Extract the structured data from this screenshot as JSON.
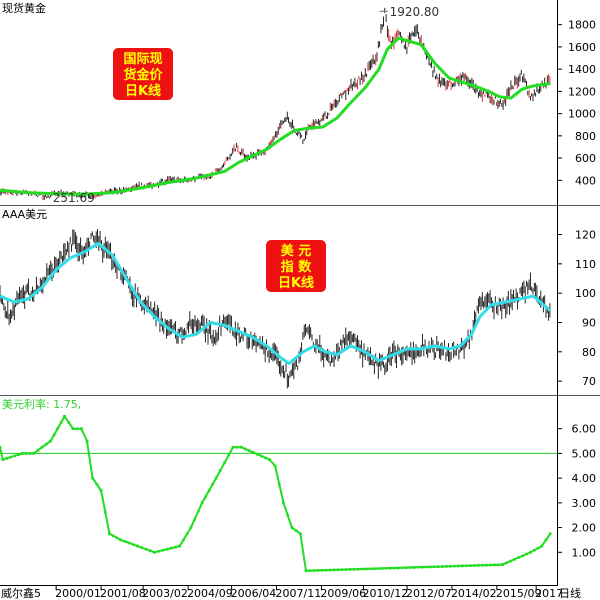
{
  "colors": {
    "gold_ma": "#22dd22",
    "usd_ma": "#33dde8",
    "rate_line": "#22dd22",
    "rate_ref": "#22cc22",
    "badge_bg": "#ee1111",
    "badge_text": "#ffff00",
    "candle": "#111111",
    "candle_up": "#dd2222"
  },
  "chart_data": [
    {
      "type": "line",
      "panel": "gold",
      "title": "现货黄金",
      "badge": [
        "国际现",
        "货金价",
        "日K线"
      ],
      "ylim": [
        250,
        1950
      ],
      "yticks": [
        400,
        600,
        800,
        1000,
        1200,
        1400,
        1600,
        1800
      ],
      "annotations": [
        {
          "text": "1920.80",
          "x": 2011.7,
          "y": 1920.8
        },
        {
          "text": "251.69",
          "x": 1999.7,
          "y": 251.69
        }
      ],
      "series": [
        {
          "role": "price",
          "x": [
            1998.0,
            1998.5,
            1999.0,
            1999.7,
            2000.0,
            2000.5,
            2001.0,
            2001.5,
            2002.0,
            2002.5,
            2003.0,
            2003.5,
            2004.0,
            2004.5,
            2005.0,
            2005.5,
            2006.0,
            2006.4,
            2006.8,
            2007.0,
            2007.5,
            2008.0,
            2008.2,
            2008.5,
            2008.8,
            2009.0,
            2009.5,
            2010.0,
            2010.5,
            2011.0,
            2011.4,
            2011.7,
            2011.9,
            2012.2,
            2012.5,
            2012.8,
            2013.0,
            2013.3,
            2013.6,
            2013.9,
            2014.2,
            2014.5,
            2015.0,
            2015.5,
            2015.9,
            2016.2,
            2016.6,
            2016.9,
            2017.3,
            2017.6
          ],
          "y": [
            300,
            295,
            285,
            255,
            285,
            275,
            265,
            270,
            300,
            315,
            350,
            360,
            400,
            395,
            425,
            430,
            550,
            700,
            600,
            620,
            670,
            880,
            980,
            850,
            760,
            870,
            950,
            1120,
            1240,
            1350,
            1500,
            1900,
            1650,
            1700,
            1600,
            1750,
            1670,
            1450,
            1300,
            1250,
            1300,
            1330,
            1200,
            1150,
            1080,
            1230,
            1350,
            1150,
            1250,
            1290
          ]
        },
        {
          "role": "moving-average",
          "x": [
            1998.0,
            1999.0,
            2000.0,
            2001.0,
            2002.0,
            2003.0,
            2004.0,
            2005.0,
            2006.0,
            2006.5,
            2007.0,
            2007.5,
            2008.0,
            2008.5,
            2009.0,
            2009.5,
            2010.0,
            2010.5,
            2011.0,
            2011.5,
            2011.8,
            2012.2,
            2012.6,
            2013.0,
            2013.5,
            2014.0,
            2014.5,
            2015.0,
            2015.5,
            2015.8,
            2016.2,
            2016.6,
            2017.0,
            2017.6
          ],
          "y": [
            310,
            290,
            280,
            275,
            290,
            330,
            380,
            420,
            480,
            560,
            620,
            680,
            770,
            850,
            870,
            880,
            960,
            1100,
            1230,
            1400,
            1580,
            1680,
            1650,
            1620,
            1450,
            1320,
            1280,
            1240,
            1190,
            1150,
            1140,
            1220,
            1250,
            1270
          ]
        }
      ]
    },
    {
      "type": "line",
      "panel": "usd",
      "title": "AAA美元",
      "badge": [
        "美 元",
        "指 数",
        "日K线"
      ],
      "ylim": [
        68,
        127
      ],
      "yticks": [
        70,
        80,
        90,
        100,
        110,
        120
      ],
      "series": [
        {
          "role": "price",
          "x": [
            1998.0,
            1998.3,
            1998.6,
            1999.0,
            1999.4,
            1999.8,
            2000.2,
            2000.6,
            2001.0,
            2001.3,
            2001.6,
            2002.0,
            2002.4,
            2002.8,
            2003.2,
            2003.6,
            2004.0,
            2004.4,
            2004.8,
            2005.2,
            2005.6,
            2006.0,
            2006.4,
            2006.8,
            2007.2,
            2007.6,
            2008.0,
            2008.3,
            2008.6,
            2008.9,
            2009.2,
            2009.5,
            2009.8,
            2010.2,
            2010.5,
            2010.9,
            2011.3,
            2011.7,
            2012.0,
            2012.5,
            2013.0,
            2013.5,
            2014.0,
            2014.4,
            2014.8,
            2015.1,
            2015.5,
            2016.0,
            2016.5,
            2016.9,
            2017.3,
            2017.6
          ],
          "y": [
            100,
            92,
            97,
            100,
            102,
            107,
            112,
            118,
            113,
            119,
            116,
            112,
            106,
            99,
            96,
            92,
            88,
            86,
            90,
            89,
            85,
            91,
            87,
            85,
            82,
            80,
            76,
            71,
            76,
            88,
            82,
            80,
            77,
            83,
            86,
            79,
            76,
            75,
            80,
            78,
            82,
            81,
            80,
            81,
            86,
            98,
            96,
            95,
            100,
            102,
            98,
            92
          ]
        },
        {
          "role": "moving-average",
          "x": [
            1998.0,
            1998.5,
            1999.0,
            1999.5,
            2000.0,
            2000.5,
            2001.0,
            2001.5,
            2002.0,
            2002.5,
            2003.0,
            2003.5,
            2004.0,
            2004.5,
            2005.0,
            2005.5,
            2006.0,
            2006.5,
            2007.0,
            2007.5,
            2008.0,
            2008.3,
            2008.8,
            2009.2,
            2009.6,
            2010.0,
            2010.5,
            2011.0,
            2011.5,
            2012.0,
            2012.5,
            2013.0,
            2013.5,
            2014.0,
            2014.4,
            2014.8,
            2015.1,
            2015.5,
            2016.0,
            2016.5,
            2017.0,
            2017.6
          ],
          "y": [
            99,
            97,
            98,
            102,
            108,
            112,
            114,
            117,
            113,
            105,
            97,
            92,
            88,
            85,
            86,
            90,
            89,
            87,
            85,
            82,
            78,
            76,
            80,
            82,
            80,
            79,
            82,
            80,
            77,
            79,
            81,
            81,
            82,
            81,
            82,
            86,
            92,
            96,
            97,
            98,
            99,
            94
          ]
        }
      ]
    },
    {
      "type": "line",
      "panel": "rate",
      "title": "美元利率: 1.75,",
      "ylim": [
        0,
        7
      ],
      "yticks": [
        1,
        2,
        3,
        4,
        5,
        6
      ],
      "reference_line": 5.0,
      "series": [
        {
          "role": "rate",
          "x": [
            1998.0,
            1998.1,
            1998.8,
            1999.2,
            1999.8,
            2000.3,
            2000.6,
            2000.9,
            2001.1,
            2001.3,
            2001.6,
            2001.9,
            2002.3,
            2002.9,
            2003.5,
            2004.4,
            2004.8,
            2005.2,
            2005.7,
            2006.3,
            2006.6,
            2007.6,
            2007.8,
            2008.1,
            2008.4,
            2008.7,
            2008.9,
            2015.9,
            2016.9,
            2017.3,
            2017.6
          ],
          "y": [
            5.25,
            4.75,
            5.0,
            5.0,
            5.5,
            6.5,
            6.0,
            6.0,
            5.5,
            4.0,
            3.5,
            1.75,
            1.5,
            1.25,
            1.0,
            1.25,
            2.0,
            3.0,
            4.0,
            5.25,
            5.25,
            4.75,
            4.5,
            3.0,
            2.0,
            1.75,
            0.25,
            0.5,
            1.0,
            1.25,
            1.75
          ]
        }
      ]
    }
  ],
  "xaxis": {
    "labels": [
      "2000/01",
      "2001/08",
      "2003/02",
      "2004/09",
      "2006/04",
      "2007/11",
      "2009/06",
      "2010/12",
      "2012/07",
      "2014/02",
      "2015/09",
      "2017"
    ],
    "positions": [
      2000.0,
      2001.6,
      2003.1,
      2004.7,
      2006.25,
      2007.85,
      2009.45,
      2010.95,
      2012.5,
      2014.1,
      2015.7,
      2017.1
    ],
    "range": [
      1998.0,
      2017.7
    ],
    "left_label": "威尔鑫5",
    "right_label": "日线"
  }
}
